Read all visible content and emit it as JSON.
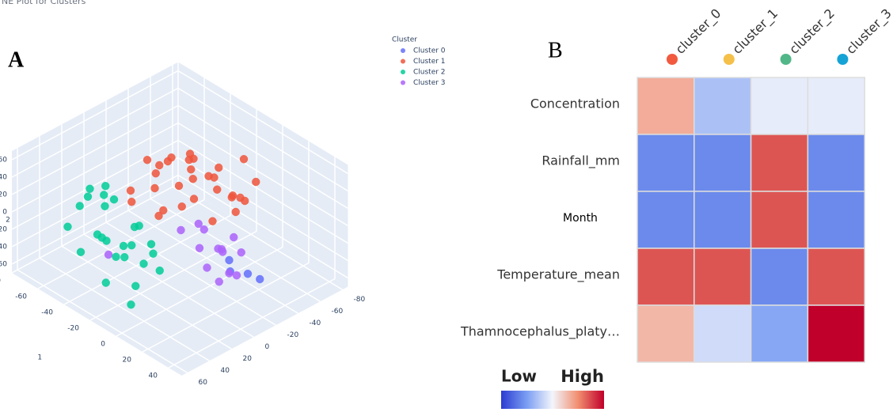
{
  "panel_labels": [
    "A",
    "B"
  ],
  "chart_data": [
    {
      "type": "scatter3d",
      "title": "NE Plot for Clusters",
      "xlabel": "1",
      "zlabel": "2",
      "legend_title": "Cluster",
      "xlim": [
        -80,
        50
      ],
      "ylim": [
        -85,
        65
      ],
      "zlim": [
        -70,
        70
      ],
      "xticks": [
        -80,
        -60,
        -40,
        -20,
        0,
        20,
        40
      ],
      "yticks": [
        -80,
        -60,
        -40,
        -20,
        0,
        20,
        40,
        60
      ],
      "zticks": [
        -60,
        -40,
        -20,
        0,
        20,
        40,
        60
      ],
      "series": [
        {
          "name": "Cluster 0",
          "color": "#636efa",
          "x": [
            15,
            20,
            25,
            10
          ],
          "y": [
            -20,
            -30,
            -35,
            -25
          ],
          "z": [
            -40,
            -45,
            -50,
            -35
          ]
        },
        {
          "name": "Cluster 1",
          "color": "#ef553b",
          "x": [
            -20,
            -10,
            -30,
            0,
            5,
            -25,
            -15,
            -35,
            -5,
            10,
            -40,
            -20,
            0,
            -10,
            -30,
            5,
            -15,
            -25,
            -5,
            10,
            -35,
            0,
            -20,
            -10,
            15,
            -30,
            5,
            -15,
            -40,
            -5
          ],
          "y": [
            -15,
            -30,
            -5,
            -40,
            -20,
            0,
            -45,
            10,
            -10,
            -35,
            5,
            -25,
            -5,
            15,
            -40,
            -45,
            -20,
            -30,
            0,
            -10,
            -15,
            -50,
            -5,
            -35,
            -25,
            -20,
            -55,
            5,
            -10,
            -45
          ],
          "z": [
            30,
            40,
            25,
            20,
            45,
            50,
            35,
            15,
            55,
            30,
            20,
            60,
            40,
            25,
            35,
            15,
            50,
            45,
            30,
            20,
            40,
            55,
            65,
            35,
            25,
            50,
            30,
            20,
            45,
            10
          ]
        },
        {
          "name": "Cluster 2",
          "color": "#00cc96",
          "x": [
            -50,
            -40,
            -30,
            -55,
            -45,
            -20,
            -35,
            -25,
            -60,
            -15,
            -40,
            -30,
            -50,
            -10,
            -20,
            -45,
            -35,
            -25,
            -15,
            -5,
            -30,
            -20,
            -10,
            -40,
            -50
          ],
          "y": [
            30,
            20,
            40,
            10,
            45,
            25,
            35,
            15,
            20,
            40,
            50,
            30,
            15,
            20,
            35,
            25,
            10,
            45,
            30,
            20,
            5,
            10,
            40,
            35,
            50
          ],
          "z": [
            30,
            20,
            35,
            15,
            25,
            10,
            40,
            0,
            5,
            -10,
            -20,
            -30,
            -40,
            -15,
            -5,
            -25,
            -35,
            -45,
            -50,
            -30,
            -55,
            -20,
            -60,
            -10,
            0
          ]
        },
        {
          "name": "Cluster 3",
          "color": "#ab63fa",
          "x": [
            -5,
            0,
            5,
            10,
            15,
            -10,
            0,
            10,
            20,
            5,
            -5,
            15,
            -40,
            10
          ],
          "y": [
            -20,
            -10,
            -25,
            -15,
            -30,
            -5,
            -30,
            -5,
            -20,
            -35,
            -15,
            -10,
            25,
            -25
          ],
          "z": [
            -10,
            -20,
            -30,
            -15,
            -25,
            -5,
            -35,
            -30,
            -40,
            -20,
            0,
            -45,
            -40,
            -50
          ]
        }
      ]
    },
    {
      "type": "heatmap",
      "categories": [
        "cluster_0",
        "cluster_1",
        "cluster_2",
        "cluster_3"
      ],
      "category_colors": [
        "#f15a3f",
        "#f5c04a",
        "#52b788",
        "#15a3d6"
      ],
      "rows": [
        "Concentration",
        "Rainfall_mm",
        "Month",
        "Temperature_mean",
        "Thamnocephalus_platy…"
      ],
      "values": [
        [
          0.35,
          -0.3,
          -0.05,
          -0.05
        ],
        [
          -0.6,
          -0.6,
          0.7,
          -0.6
        ],
        [
          -0.6,
          -0.6,
          0.7,
          -0.6
        ],
        [
          0.7,
          0.7,
          -0.6,
          0.7
        ],
        [
          0.3,
          -0.15,
          -0.45,
          1.0
        ]
      ],
      "vlim": [
        -1,
        1
      ],
      "colors": [
        "#2b3bd0",
        "#7b9ef3",
        "#f3f5fb",
        "#f18d6f",
        "#c0002a"
      ],
      "colorbar_labels": [
        "Low",
        "High"
      ]
    }
  ]
}
